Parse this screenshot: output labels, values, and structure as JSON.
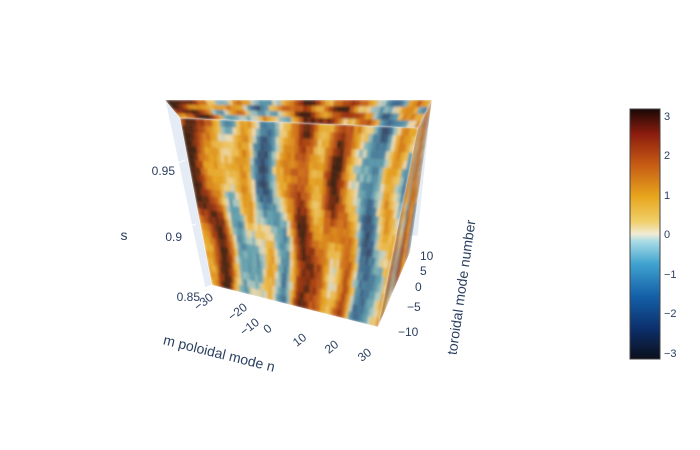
{
  "chart_data": {
    "type": "volume",
    "title": "",
    "axes": {
      "x": {
        "title": "m poloidal mode n",
        "ticks": [
          "−30",
          "−20",
          "−10",
          "0",
          "10",
          "20",
          "30"
        ],
        "range": [
          -30,
          30
        ]
      },
      "y": {
        "title": "toroidal mode number",
        "ticks": [
          "10",
          "5",
          "0",
          "−5",
          "−10"
        ],
        "range": [
          -12,
          12
        ]
      },
      "z": {
        "title": "s",
        "ticks": [
          "0.95",
          "0.9",
          "0.85"
        ],
        "range": [
          0.85,
          0.99
        ]
      }
    },
    "colorbar": {
      "ticks": [
        "3",
        "2",
        "1",
        "0",
        "−1",
        "−2",
        "−3"
      ],
      "range": [
        -3.14,
        3.14
      ],
      "colorscale": [
        [
          0.0,
          "#0b0f1a"
        ],
        [
          0.12,
          "#0c2f6b"
        ],
        [
          0.25,
          "#1460a8"
        ],
        [
          0.38,
          "#3fa2cf"
        ],
        [
          0.47,
          "#a8dbe6"
        ],
        [
          0.5,
          "#f0ecd4"
        ],
        [
          0.55,
          "#f0cf6a"
        ],
        [
          0.65,
          "#e7a51c"
        ],
        [
          0.78,
          "#c55a14"
        ],
        [
          0.9,
          "#8c1c0e"
        ],
        [
          1.0,
          "#1a0806"
        ]
      ]
    },
    "grid": true,
    "background_color": "#e5ecf6"
  }
}
